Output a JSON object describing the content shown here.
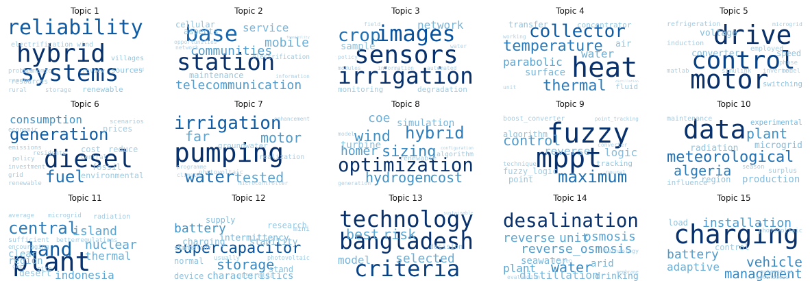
{
  "chart_data": {
    "type": "wordcloud",
    "layout": "3x5 grid of word clouds",
    "colormap": "Blues",
    "panels": [
      {
        "title": "Topic 1",
        "words": [
          {
            "text": "reliability",
            "weight": 0.85
          },
          {
            "text": "hybrid",
            "weight": 1.0
          },
          {
            "text": "systems",
            "weight": 0.95
          },
          {
            "text": "sources",
            "weight": 0.3
          },
          {
            "text": "villages",
            "weight": 0.28
          },
          {
            "text": "renewable",
            "weight": 0.28
          },
          {
            "text": "electrification",
            "weight": 0.22
          },
          {
            "text": "wind",
            "weight": 0.22
          },
          {
            "text": "resources",
            "weight": 0.2
          },
          {
            "text": "storage",
            "weight": 0.18
          },
          {
            "text": "rural",
            "weight": 0.16
          },
          {
            "text": "economic",
            "weight": 0.15
          },
          {
            "text": "review",
            "weight": 0.15
          },
          {
            "text": "grid",
            "weight": 0.15
          },
          {
            "text": "problem",
            "weight": 0.15
          },
          {
            "text": "remote",
            "weight": 0.15
          }
        ]
      },
      {
        "title": "Topic 2",
        "words": [
          {
            "text": "station",
            "weight": 1.0
          },
          {
            "text": "base",
            "weight": 0.8
          },
          {
            "text": "communities",
            "weight": 0.55
          },
          {
            "text": "telecommunication",
            "weight": 0.55
          },
          {
            "text": "mobile",
            "weight": 0.45
          },
          {
            "text": "service",
            "weight": 0.4
          },
          {
            "text": "aspects",
            "weight": 0.3
          },
          {
            "text": "cellular",
            "weight": 0.3
          },
          {
            "text": "electrification",
            "weight": 0.25
          },
          {
            "text": "maintenance",
            "weight": 0.28
          },
          {
            "text": "opportunities",
            "weight": 0.15
          },
          {
            "text": "feasibility",
            "weight": 0.15
          },
          {
            "text": "network",
            "weight": 0.15
          },
          {
            "text": "information",
            "weight": 0.15
          }
        ]
      },
      {
        "title": "Topic 3",
        "words": [
          {
            "text": "images",
            "weight": 0.9
          },
          {
            "text": "sensors",
            "weight": 1.0
          },
          {
            "text": "irrigation",
            "weight": 1.0
          },
          {
            "text": "crop",
            "weight": 0.75
          },
          {
            "text": "network",
            "weight": 0.4
          },
          {
            "text": "sample",
            "weight": 0.3
          },
          {
            "text": "monitoring",
            "weight": 0.22
          },
          {
            "text": "degradation",
            "weight": 0.22
          },
          {
            "text": "policy",
            "weight": 0.15
          },
          {
            "text": "field",
            "weight": 0.15
          },
          {
            "text": "modules",
            "weight": 0.15
          },
          {
            "text": "water",
            "weight": 0.15
          },
          {
            "text": "information",
            "weight": 0.15
          },
          {
            "text": "automated",
            "weight": 0.15
          }
        ]
      },
      {
        "title": "Topic 4",
        "words": [
          {
            "text": "collector",
            "weight": 0.85
          },
          {
            "text": "heat",
            "weight": 1.0
          },
          {
            "text": "temperature",
            "weight": 0.7
          },
          {
            "text": "thermal",
            "weight": 0.7
          },
          {
            "text": "parabolic",
            "weight": 0.5
          },
          {
            "text": "water",
            "weight": 0.45
          },
          {
            "text": "surface",
            "weight": 0.4
          },
          {
            "text": "transfer",
            "weight": 0.3
          },
          {
            "text": "concentrator",
            "weight": 0.28
          },
          {
            "text": "air",
            "weight": 0.3
          },
          {
            "text": "fluid",
            "weight": 0.25
          },
          {
            "text": "distillation",
            "weight": 0.2
          },
          {
            "text": "working",
            "weight": 0.15
          },
          {
            "text": "unit",
            "weight": 0.15
          }
        ]
      },
      {
        "title": "Topic 5",
        "words": [
          {
            "text": "drive",
            "weight": 1.0
          },
          {
            "text": "control",
            "weight": 0.95
          },
          {
            "text": "motor",
            "weight": 1.0
          },
          {
            "text": "voltage",
            "weight": 0.35
          },
          {
            "text": "converter",
            "weight": 0.35
          },
          {
            "text": "switching",
            "weight": 0.3
          },
          {
            "text": "speed",
            "weight": 0.3
          },
          {
            "text": "refrigeration",
            "weight": 0.22
          },
          {
            "text": "microgrid",
            "weight": 0.2
          },
          {
            "text": "induction",
            "weight": 0.2
          },
          {
            "text": "employed",
            "weight": 0.2
          },
          {
            "text": "matlab",
            "weight": 0.15
          },
          {
            "text": "simulink",
            "weight": 0.15
          },
          {
            "text": "inverter",
            "weight": 0.15
          },
          {
            "text": "phase",
            "weight": 0.15
          },
          {
            "text": "model",
            "weight": 0.15
          }
        ]
      },
      {
        "title": "Topic 6",
        "words": [
          {
            "text": "generation",
            "weight": 0.85
          },
          {
            "text": "diesel",
            "weight": 1.0
          },
          {
            "text": "consumption",
            "weight": 0.6
          },
          {
            "text": "fuel",
            "weight": 0.75
          },
          {
            "text": "economic",
            "weight": 0.22
          },
          {
            "text": "emissions",
            "weight": 0.22
          },
          {
            "text": "policy",
            "weight": 0.2
          },
          {
            "text": "investment",
            "weight": 0.2
          },
          {
            "text": "grid",
            "weight": 0.2
          },
          {
            "text": "renewable",
            "weight": 0.2
          },
          {
            "text": "environmental",
            "weight": 0.25
          },
          {
            "text": "prices",
            "weight": 0.22
          },
          {
            "text": "scenarios",
            "weight": 0.2
          },
          {
            "text": "cost",
            "weight": 0.22
          },
          {
            "text": "reduce",
            "weight": 0.22
          },
          {
            "text": "fossil",
            "weight": 0.2
          },
          {
            "text": "residents",
            "weight": 0.2
          },
          {
            "text": "central",
            "weight": 0.2
          }
        ]
      },
      {
        "title": "Topic 7",
        "words": [
          {
            "text": "pumping",
            "weight": 1.0
          },
          {
            "text": "irrigation",
            "weight": 0.85
          },
          {
            "text": "water",
            "weight": 0.75
          },
          {
            "text": "motor",
            "weight": 0.55
          },
          {
            "text": "tested",
            "weight": 0.5
          },
          {
            "text": "far",
            "weight": 0.5
          },
          {
            "text": "groundwater",
            "weight": 0.22
          },
          {
            "text": "realization",
            "weight": 0.2
          },
          {
            "text": "enhancement",
            "weight": 0.2
          },
          {
            "text": "photovoltaic",
            "weight": 0.15
          },
          {
            "text": "programme",
            "weight": 0.15
          },
          {
            "text": "climate",
            "weight": 0.15
          },
          {
            "text": "microcontroller",
            "weight": 0.15
          }
        ]
      },
      {
        "title": "Topic 8",
        "words": [
          {
            "text": "optimization",
            "weight": 1.0
          },
          {
            "text": "hybrid",
            "weight": 0.7
          },
          {
            "text": "wind",
            "weight": 0.6
          },
          {
            "text": "sizing",
            "weight": 0.65
          },
          {
            "text": "homer",
            "weight": 0.55
          },
          {
            "text": "hydrogen",
            "weight": 0.6
          },
          {
            "text": "cost",
            "weight": 0.6
          },
          {
            "text": "coe",
            "weight": 0.45
          },
          {
            "text": "simulation",
            "weight": 0.4
          },
          {
            "text": "turbine",
            "weight": 0.35
          },
          {
            "text": "algorithm",
            "weight": 0.25
          },
          {
            "text": "configuration",
            "weight": 0.22
          },
          {
            "text": "renewable",
            "weight": 0.22
          },
          {
            "text": "generation",
            "weight": 0.15
          },
          {
            "text": "model",
            "weight": 0.15
          }
        ]
      },
      {
        "title": "Topic 9",
        "words": [
          {
            "text": "fuzzy",
            "weight": 1.0
          },
          {
            "text": "mppt",
            "weight": 1.0
          },
          {
            "text": "maximum",
            "weight": 0.75
          },
          {
            "text": "control",
            "weight": 0.55
          },
          {
            "text": "reverse",
            "weight": 0.35
          },
          {
            "text": "logic",
            "weight": 0.35
          },
          {
            "text": "algorithm",
            "weight": 0.3
          },
          {
            "text": "point",
            "weight": 0.28
          },
          {
            "text": "tracking",
            "weight": 0.28
          },
          {
            "text": "point_tracking",
            "weight": 0.2
          },
          {
            "text": "boost_converter",
            "weight": 0.2
          },
          {
            "text": "technique",
            "weight": 0.2
          },
          {
            "text": "fuzzy_logic",
            "weight": 0.22
          },
          {
            "text": "converter",
            "weight": 0.15
          },
          {
            "text": "neural",
            "weight": 0.15
          }
        ]
      },
      {
        "title": "Topic 10",
        "words": [
          {
            "text": "data",
            "weight": 1.0
          },
          {
            "text": "meteorological",
            "weight": 0.75
          },
          {
            "text": "algeria",
            "weight": 0.7
          },
          {
            "text": "plant",
            "weight": 0.6
          },
          {
            "text": "experimental",
            "weight": 0.4
          },
          {
            "text": "microgrid",
            "weight": 0.35
          },
          {
            "text": "radiation",
            "weight": 0.3
          },
          {
            "text": "production",
            "weight": 0.35
          },
          {
            "text": "region",
            "weight": 0.3
          },
          {
            "text": "influence",
            "weight": 0.25
          },
          {
            "text": "maintenance",
            "weight": 0.22
          },
          {
            "text": "surplus",
            "weight": 0.22
          },
          {
            "text": "season",
            "weight": 0.2
          }
        ]
      },
      {
        "title": "Topic 11",
        "words": [
          {
            "text": "plant",
            "weight": 1.0
          },
          {
            "text": "land",
            "weight": 0.85
          },
          {
            "text": "central",
            "weight": 0.7
          },
          {
            "text": "island",
            "weight": 0.5
          },
          {
            "text": "nuclear",
            "weight": 0.5
          },
          {
            "text": "thermal",
            "weight": 0.45
          },
          {
            "text": "indonesia",
            "weight": 0.5
          },
          {
            "text": "region",
            "weight": 0.35
          },
          {
            "text": "clear",
            "weight": 0.35
          },
          {
            "text": "desert",
            "weight": 0.3
          },
          {
            "text": "radiation",
            "weight": 0.22
          },
          {
            "text": "regulations",
            "weight": 0.2
          },
          {
            "text": "sufficient",
            "weight": 0.2
          },
          {
            "text": "better",
            "weight": 0.2
          },
          {
            "text": "encouraging",
            "weight": 0.2
          },
          {
            "text": "average",
            "weight": 0.2
          },
          {
            "text": "microgrid",
            "weight": 0.2
          },
          {
            "text": "site",
            "weight": 0.2
          },
          {
            "text": "gas",
            "weight": 0.15
          }
        ]
      },
      {
        "title": "Topic 12",
        "words": [
          {
            "text": "supercapacitor",
            "weight": 0.9
          },
          {
            "text": "battery",
            "weight": 0.6
          },
          {
            "text": "storage",
            "weight": 0.65
          },
          {
            "text": "intermittency",
            "weight": 0.4
          },
          {
            "text": "characteristics",
            "weight": 0.4
          },
          {
            "text": "charging",
            "weight": 0.35
          },
          {
            "text": "stability",
            "weight": 0.35
          },
          {
            "text": "supply",
            "weight": 0.35
          },
          {
            "text": "research",
            "weight": 0.28
          },
          {
            "text": "mini",
            "weight": 0.3
          },
          {
            "text": "stand",
            "weight": 0.3
          },
          {
            "text": "normal",
            "weight": 0.3
          },
          {
            "text": "device",
            "weight": 0.3
          },
          {
            "text": "state",
            "weight": 0.3
          },
          {
            "text": "photovoltaic",
            "weight": 0.22
          },
          {
            "text": "australia",
            "weight": 0.22
          },
          {
            "text": "usually",
            "weight": 0.22
          },
          {
            "text": "standalone",
            "weight": 0.2
          }
        ]
      },
      {
        "title": "Topic 13",
        "words": [
          {
            "text": "technology",
            "weight": 1.0
          },
          {
            "text": "bangladesh",
            "weight": 1.0
          },
          {
            "text": "criteria",
            "weight": 0.95
          },
          {
            "text": "best",
            "weight": 0.5
          },
          {
            "text": "risk",
            "weight": 0.5
          },
          {
            "text": "selected",
            "weight": 0.45
          },
          {
            "text": "model",
            "weight": 0.4
          },
          {
            "text": "decision",
            "weight": 0.22
          },
          {
            "text": "sustainable",
            "weight": 0.15
          }
        ]
      },
      {
        "title": "Topic 14",
        "words": [
          {
            "text": "desalination",
            "weight": 1.0
          },
          {
            "text": "osmosis",
            "weight": 0.5
          },
          {
            "text": "reverse",
            "weight": 0.5
          },
          {
            "text": "unit",
            "weight": 0.5
          },
          {
            "text": "reverse_osmosis",
            "weight": 0.55
          },
          {
            "text": "seawater",
            "weight": 0.4
          },
          {
            "text": "water",
            "weight": 0.65
          },
          {
            "text": "plant",
            "weight": 0.5
          },
          {
            "text": "arid",
            "weight": 0.4
          },
          {
            "text": "drinking",
            "weight": 0.4
          },
          {
            "text": "distillation",
            "weight": 0.4
          },
          {
            "text": "technology",
            "weight": 0.22
          },
          {
            "text": "membrane",
            "weight": 0.2
          },
          {
            "text": "evaluation",
            "weight": 0.15
          },
          {
            "text": "driven",
            "weight": 0.15
          }
        ]
      },
      {
        "title": "Topic 15",
        "words": [
          {
            "text": "charging",
            "weight": 1.0
          },
          {
            "text": "installation",
            "weight": 0.55
          },
          {
            "text": "battery",
            "weight": 0.55
          },
          {
            "text": "vehicle",
            "weight": 0.65
          },
          {
            "text": "management",
            "weight": 0.65
          },
          {
            "text": "adaptive",
            "weight": 0.45
          },
          {
            "text": "load",
            "weight": 0.3
          },
          {
            "text": "control",
            "weight": 0.25
          },
          {
            "text": "photovoltaic",
            "weight": 0.2
          },
          {
            "text": "automotive",
            "weight": 0.15
          },
          {
            "text": "autonomous",
            "weight": 0.15
          }
        ]
      }
    ]
  }
}
